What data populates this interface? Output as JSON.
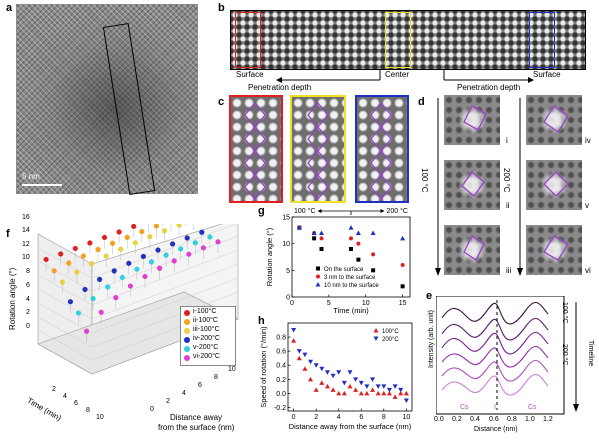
{
  "panel_letters": {
    "a": "a",
    "b": "b",
    "c": "c",
    "d": "d",
    "e": "e",
    "f": "f",
    "g": "g",
    "h": "h"
  },
  "panel_a": {
    "scale_bar": "5 nm"
  },
  "panel_b": {
    "surface_left": "Surface",
    "center": "Center",
    "surface_right": "Surface",
    "penetration_left": "Penetration depth",
    "penetration_right": "Penetration depth"
  },
  "panel_c": {
    "frame_colors": [
      "#e02020",
      "#f0e020",
      "#2030c0"
    ]
  },
  "panel_d": {
    "temp_left": "100 °C",
    "temp_right": "200 °C",
    "tiles_left": [
      "i",
      "ii",
      "iii"
    ],
    "tiles_right": [
      "iv",
      "v",
      "vi"
    ]
  },
  "panel_e": {
    "ylabel": "Intensity (arb. unit)",
    "xlabel": "Distance (nm)",
    "xticks": [
      "0.0",
      "0.2",
      "0.4",
      "0.6",
      "0.8",
      "1.0",
      "1.2"
    ],
    "atoms": [
      "Cs",
      "I",
      "Cs"
    ],
    "label_100": "100 °C",
    "label_200": "200 °C",
    "timeline": "Timeline"
  },
  "panel_f": {
    "zlabel": "Rotation angle (°)",
    "zticks": [
      "0",
      "2",
      "4",
      "6",
      "8",
      "10",
      "12",
      "14",
      "16"
    ],
    "time_label": "Time (min)",
    "time_ticks": [
      "2",
      "4",
      "6",
      "8",
      "10"
    ],
    "dist_label_1": "Distance away",
    "dist_label_2": "from the surface (nm)",
    "dist_ticks": [
      "0",
      "2",
      "4",
      "6",
      "8",
      "10"
    ],
    "legend": [
      {
        "label": "i-100°C",
        "color": "#e02020"
      },
      {
        "label": "ii-100°C",
        "color": "#f5a020"
      },
      {
        "label": "iii-100°C",
        "color": "#e8d040"
      },
      {
        "label": "iv-200°C",
        "color": "#2030c0"
      },
      {
        "label": "v-200°C",
        "color": "#30d0e0"
      },
      {
        "label": "vi-200°C",
        "color": "#e040d0"
      }
    ]
  },
  "chart_data": [
    {
      "id": "g",
      "type": "scatter",
      "title": "",
      "xlabel": "Time (min)",
      "ylabel": "Rotation angle (°)",
      "xlim": [
        0,
        16
      ],
      "ylim": [
        0,
        15
      ],
      "xticks": [
        "0",
        "5",
        "10",
        "15"
      ],
      "yticks": [
        "0",
        "5",
        "10",
        "15"
      ],
      "arrow_left": "100 °C",
      "arrow_right": "200 °C",
      "series": [
        {
          "name": "On the surface",
          "color": "#000000",
          "marker": "square",
          "x": [
            1,
            3,
            4,
            8,
            9,
            11,
            15
          ],
          "y": [
            13,
            11,
            9,
            9,
            7,
            5,
            2
          ]
        },
        {
          "name": "3 nm to the surface",
          "color": "#e02020",
          "marker": "circle",
          "x": [
            1,
            3,
            4,
            8,
            9,
            11,
            15
          ],
          "y": [
            13,
            12,
            11,
            11,
            10,
            8,
            6
          ]
        },
        {
          "name": "10 nm to the surface",
          "color": "#2030c0",
          "marker": "triangle",
          "x": [
            1,
            3,
            4,
            8,
            9,
            11,
            15
          ],
          "y": [
            13,
            12,
            12,
            13,
            12,
            12,
            11
          ]
        }
      ]
    },
    {
      "id": "h",
      "type": "scatter",
      "title": "",
      "xlabel": "Distance away from the surface (nm)",
      "ylabel": "Speed of rotation (°/min)",
      "xlim": [
        -0.5,
        10.5
      ],
      "ylim": [
        -0.25,
        1.0
      ],
      "xticks": [
        "0",
        "2",
        "4",
        "6",
        "8",
        "10"
      ],
      "yticks": [
        "-0.2",
        "0.0",
        "0.2",
        "0.4",
        "0.6",
        "0.8"
      ],
      "series": [
        {
          "name": "100°C",
          "color": "#e02020",
          "marker": "triangle",
          "x": [
            0,
            0.5,
            1,
            1.5,
            2,
            2.5,
            3,
            3.5,
            4,
            4.5,
            5,
            5.5,
            6,
            6.5,
            7,
            7.5,
            8,
            8.5,
            9,
            9.5,
            10
          ],
          "y": [
            0.75,
            0.5,
            0.35,
            0.2,
            0.05,
            0.15,
            0.1,
            0.05,
            0.0,
            0.0,
            0.1,
            0.05,
            0.0,
            0.0,
            0.05,
            0.0,
            0.0,
            0.0,
            -0.05,
            0.0,
            0.0
          ]
        },
        {
          "name": "200°C",
          "color": "#2030c0",
          "marker": "triangle-down",
          "x": [
            0,
            0.5,
            1,
            1.5,
            2,
            2.5,
            3,
            3.5,
            4,
            4.5,
            5,
            5.5,
            6,
            6.5,
            7,
            7.5,
            8,
            8.5,
            9,
            9.5,
            10
          ],
          "y": [
            0.9,
            0.6,
            0.55,
            0.45,
            0.4,
            0.35,
            0.3,
            0.25,
            0.3,
            0.15,
            0.3,
            0.2,
            0.15,
            0.1,
            0.2,
            0.1,
            0.1,
            0.05,
            0.1,
            0.05,
            -0.1
          ]
        }
      ]
    }
  ]
}
